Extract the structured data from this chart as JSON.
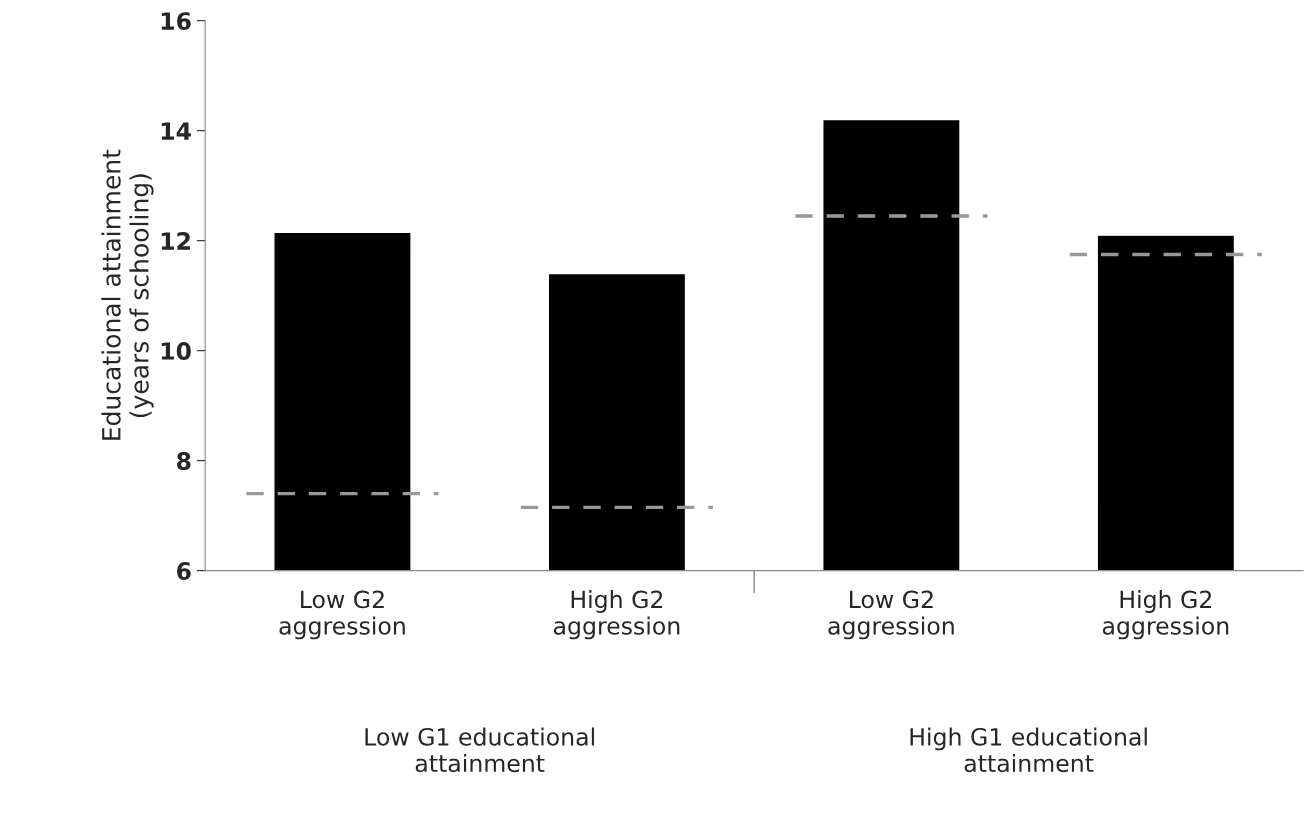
{
  "chart_data": {
    "type": "bar",
    "ylabel": "Educational attainment\n(years of schooling)",
    "categories": [
      "Low G2\naggression",
      "High G2\naggression",
      "Low G2\naggression",
      "High G2\naggression"
    ],
    "values": [
      12.15,
      11.4,
      14.2,
      12.1
    ],
    "color": "#000000",
    "ref_lines": [
      {
        "axis": "y",
        "value": 7.4,
        "color": "#999999",
        "line_style": "dashed"
      },
      {
        "axis": "y",
        "value": 7.15,
        "color": "#999999",
        "line_style": "dashed"
      },
      {
        "axis": "y",
        "value": 12.45,
        "color": "#999999",
        "line_style": "dashed"
      },
      {
        "axis": "y",
        "value": 11.75,
        "color": "#999999",
        "line_style": "dashed"
      }
    ],
    "ylim": [
      6,
      16
    ],
    "yticks": [
      6,
      8,
      10,
      12,
      14,
      16
    ],
    "grid": false,
    "legend": false,
    "annotations": [
      "Low G1 educational\nattainment",
      "High G1 educational\nattainment"
    ]
  }
}
